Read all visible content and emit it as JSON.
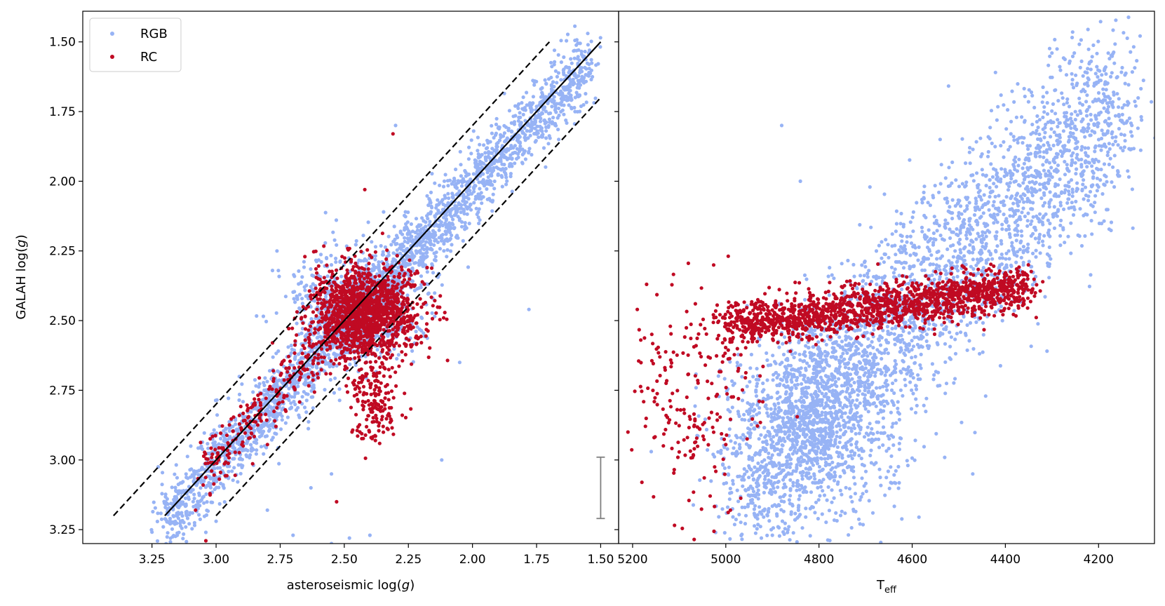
{
  "chart_data": [
    {
      "type": "scatter",
      "panel": "left",
      "title": "",
      "xlabel": "asteroseismic log(g)",
      "ylabel": "GALAH log(g)",
      "xlim": [
        3.52,
        1.43
      ],
      "ylim": [
        3.3,
        1.39
      ],
      "x_inverted": true,
      "y_inverted": true,
      "xticks": [
        3.25,
        3.0,
        2.75,
        2.5,
        2.25,
        2.0,
        1.75,
        1.5
      ],
      "xtick_labels": [
        "3.25",
        "3.00",
        "2.75",
        "2.50",
        "2.25",
        "2.00",
        "1.75",
        "1.50"
      ],
      "yticks": [
        1.5,
        1.75,
        2.0,
        2.25,
        2.5,
        2.75,
        3.0,
        3.25
      ],
      "ytick_labels": [
        "1.50",
        "1.75",
        "2.00",
        "2.25",
        "2.50",
        "2.75",
        "3.00",
        "3.25"
      ],
      "legend": {
        "position": "top-left",
        "entries": [
          {
            "label": "RGB",
            "color": "#97b3f5"
          },
          {
            "label": "RC",
            "color": "#c00a23"
          }
        ]
      },
      "reference_lines": [
        {
          "name": "one-to-one",
          "style": "solid",
          "x": [
            3.2,
            1.5
          ],
          "y": [
            3.2,
            1.5
          ]
        },
        {
          "name": "upper-offset",
          "style": "dashed",
          "x": [
            3.4,
            1.7
          ],
          "y": [
            3.2,
            1.5
          ]
        },
        {
          "name": "lower-offset",
          "style": "dashed",
          "x": [
            3.0,
            1.5
          ],
          "y": [
            3.2,
            1.7
          ]
        }
      ],
      "error_bar": {
        "x": 1.5,
        "y_center": 3.1,
        "y_low": 2.99,
        "y_high": 3.21,
        "color": "#808080"
      },
      "series": [
        {
          "name": "RGB",
          "color": "#97b3f5",
          "description": "dense band along 1:1 from (3.2,3.2) to (1.55,1.6)",
          "clusters": [
            {
              "x_range": [
                3.2,
                1.55
              ],
              "scatter": 0.06,
              "n": 2600
            },
            {
              "x_center": 2.45,
              "y_center": 2.45,
              "spread": 0.12,
              "n": 700
            }
          ],
          "outliers": [
            [
              2.78,
              2.32
            ],
            [
              2.62,
              2.34
            ],
            [
              2.3,
              1.8
            ],
            [
              1.78,
              2.46
            ],
            [
              2.05,
              2.65
            ],
            [
              2.12,
              3.0
            ],
            [
              2.55,
              3.3
            ],
            [
              2.48,
              3.28
            ],
            [
              2.4,
              3.27
            ],
            [
              2.7,
              3.27
            ],
            [
              3.0,
              3.22
            ],
            [
              2.8,
              3.18
            ],
            [
              1.6,
              1.75
            ],
            [
              1.55,
              1.62
            ],
            [
              2.55,
              3.05
            ],
            [
              2.63,
              3.1
            ]
          ]
        },
        {
          "name": "RC",
          "color": "#c00a23",
          "description": "clump near (2.4,2.5) plus secondary clump near (2.38,2.77)",
          "clusters": [
            {
              "x_center": 2.42,
              "y_center": 2.47,
              "spread_x": 0.1,
              "spread_y": 0.08,
              "n": 1400
            },
            {
              "x_center": 2.38,
              "y_center": 2.77,
              "spread_x": 0.05,
              "spread_y": 0.1,
              "n": 200
            },
            {
              "x_range": [
                3.05,
                2.5
              ],
              "scatter": 0.05,
              "n": 250
            }
          ],
          "outliers": [
            [
              2.31,
              1.83
            ],
            [
              2.42,
              2.03
            ],
            [
              2.53,
              3.15
            ],
            [
              3.04,
              3.29
            ],
            [
              2.78,
              2.58
            ],
            [
              3.08,
              3.18
            ]
          ]
        }
      ]
    },
    {
      "type": "scatter",
      "panel": "right",
      "title": "",
      "xlabel": "T",
      "xlabel_sub": "eff",
      "ylabel": "",
      "xlim": [
        5230,
        4080
      ],
      "ylim": [
        3.3,
        1.39
      ],
      "x_inverted": true,
      "y_inverted": true,
      "xticks": [
        5200,
        5000,
        4800,
        4600,
        4400,
        4200
      ],
      "xtick_labels": [
        "5200",
        "5000",
        "4800",
        "4600",
        "4400",
        "4200"
      ],
      "series": [
        {
          "name": "RGB",
          "color": "#97b3f5",
          "description": "band from (5000,3.1) rising to (4150,1.7)",
          "clusters": [
            {
              "teff_range": [
                4980,
                4150
              ],
              "logg_range": [
                3.1,
                1.7
              ],
              "scatter": 0.17,
              "n": 3000
            },
            {
              "teff_center": 4800,
              "logg_center": 2.9,
              "spread_teff": 90,
              "spread_logg": 0.18,
              "n": 900
            }
          ],
          "outliers": [
            [
              4880,
              1.8
            ],
            [
              4540,
              1.85
            ],
            [
              4840,
              2.0
            ],
            [
              4900,
              3.27
            ],
            [
              5160,
              2.97
            ],
            [
              4120,
              1.73
            ],
            [
              4300,
              1.54
            ]
          ]
        },
        {
          "name": "RC",
          "color": "#c00a23",
          "description": "horizontal clump at logg~2.48 from 5000 to 4350, with hot scatter",
          "clusters": [
            {
              "teff_range": [
                5000,
                4350
              ],
              "logg_range": [
                2.52,
                2.38
              ],
              "scatter": 0.04,
              "n": 1600
            },
            {
              "teff_center": 5060,
              "logg_center": 2.8,
              "spread_teff": 70,
              "spread_logg": 0.2,
              "n": 200
            }
          ],
          "outliers": [
            [
              5170,
              2.37
            ],
            [
              5190,
              2.46
            ],
            [
              5180,
              3.08
            ],
            [
              5210,
              2.9
            ],
            [
              4990,
              3.18
            ],
            [
              4820,
              2.4
            ]
          ]
        }
      ]
    }
  ]
}
